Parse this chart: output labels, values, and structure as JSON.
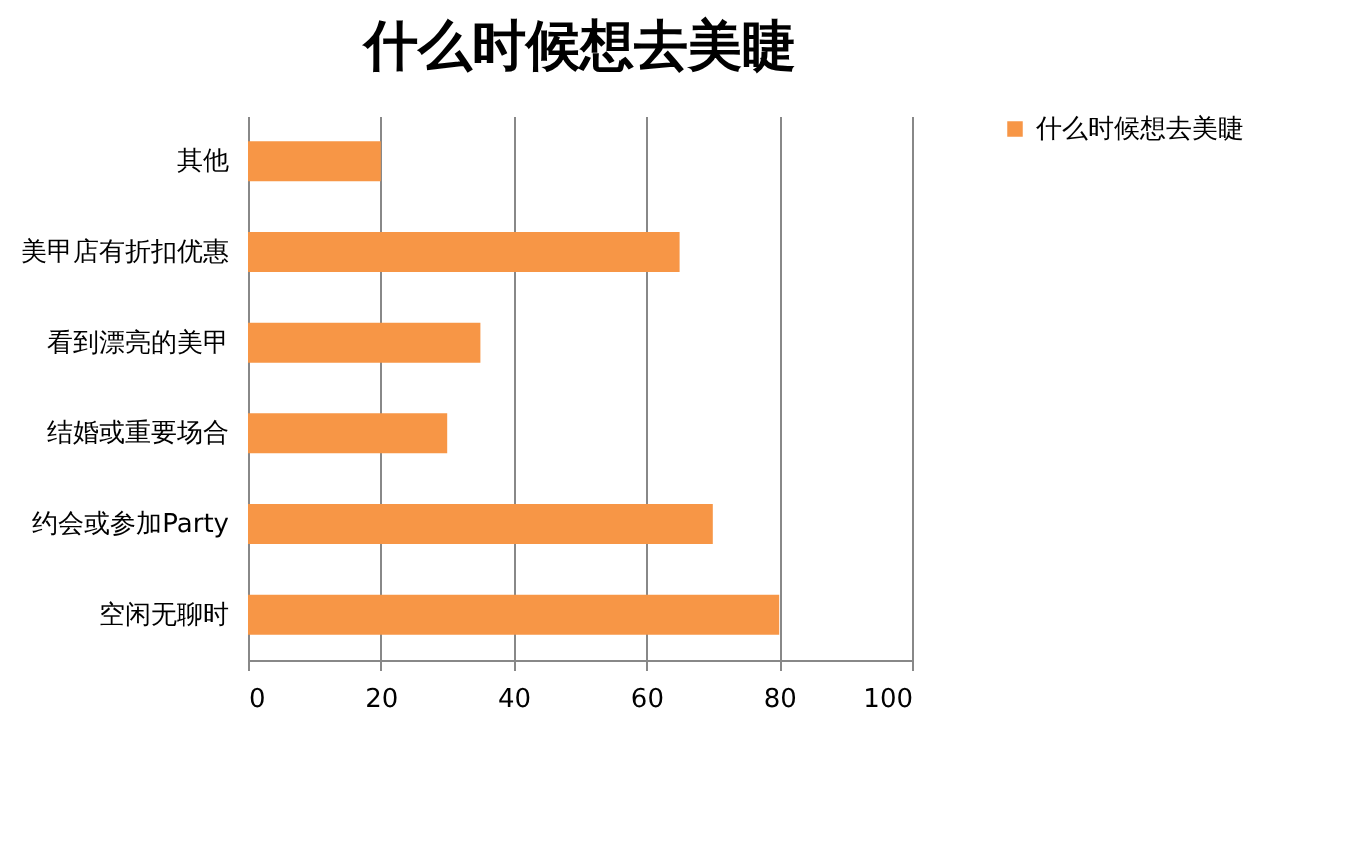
{
  "chart_data": {
    "type": "bar",
    "orientation": "horizontal",
    "title": "什么时候想去美睫",
    "categories": [
      "其他",
      "美甲店有折扣优惠",
      "看到漂亮的美甲",
      "结婚或重要场合",
      "约会或参加Party",
      "空闲无聊时"
    ],
    "series": [
      {
        "name": "什么时候想去美睫",
        "color": "#f79646",
        "values": [
          20,
          65,
          35,
          30,
          70,
          80
        ]
      }
    ],
    "xlim": [
      0,
      100
    ],
    "xticks": [
      0,
      20,
      40,
      60,
      80,
      100
    ],
    "grid": "x",
    "legend": "right"
  }
}
